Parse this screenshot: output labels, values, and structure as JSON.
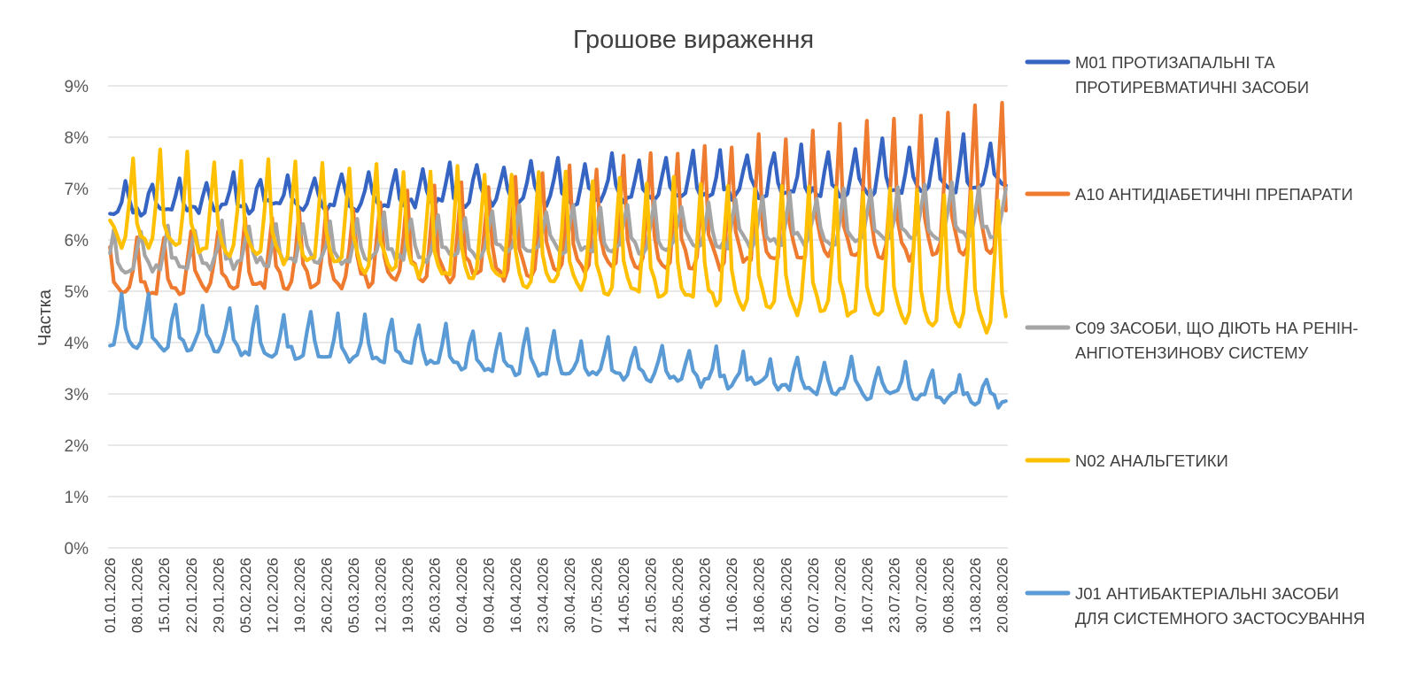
{
  "chart_data": {
    "type": "line",
    "title": "Грошове вираження",
    "ylabel": "Частка",
    "xlabel": "",
    "ylim": [
      0,
      9
    ],
    "yticks": [
      "0%",
      "1%",
      "2%",
      "3%",
      "4%",
      "5%",
      "6%",
      "7%",
      "8%",
      "9%"
    ],
    "grid": true,
    "legend_position": "right",
    "x_start": "01.01.2026",
    "x_end": "21.08.2026",
    "x_tick_labels": [
      "01.01.2026",
      "08.01.2026",
      "15.01.2026",
      "22.01.2026",
      "29.01.2026",
      "05.02.2026",
      "12.02.2026",
      "19.02.2026",
      "26.02.2026",
      "05.03.2026",
      "12.03.2026",
      "19.03.2026",
      "26.03.2026",
      "02.04.2026",
      "09.04.2026",
      "16.04.2026",
      "23.04.2026",
      "30.04.2026",
      "07.05.2026",
      "14.05.2026",
      "21.05.2026",
      "28.05.2026",
      "04.06.2026",
      "11.06.2026",
      "18.06.2026",
      "25.06.2026",
      "02.07.2026",
      "09.07.2026",
      "16.07.2026",
      "23.07.2026",
      "30.07.2026",
      "06.08.2026",
      "13.08.2026",
      "20.08.2026"
    ],
    "series": [
      {
        "name": "M01 ПРОТИЗАПАЛЬНІ ТА ПРОТИРЕВМАТИЧНІ ЗАСОБИ",
        "legend_lines": [
          "M01 ПРОТИЗАПАЛЬНІ ТА",
          "ПРОТИРЕВМАТИЧНІ ЗАСОБИ"
        ],
        "color": "#3564c2",
        "base_start": 6.75,
        "base_end": 7.35,
        "amp_start": 0.55,
        "amp_end": 1.05,
        "peak_weekday": 4,
        "seed": 11,
        "values": []
      },
      {
        "name": "A10 АНТИДІАБЕТИЧНІ ПРЕПАРАТИ",
        "legend_lines": [
          "A10 АНТИДІАБЕТИЧНІ ПРЕПАРАТИ"
        ],
        "color": "#ee7b30",
        "base_start": 5.3,
        "base_end": 6.9,
        "amp_start": 1.0,
        "amp_end": 3.0,
        "peak_weekday": 0,
        "seed": 23,
        "values": []
      },
      {
        "name": "C09 ЗАСОБИ, ЩО ДІЮТЬ НА РЕНІН-АНГІОТЕНЗИНОВУ СИСТЕМУ",
        "legend_lines": [
          "C09 ЗАСОБИ, ЩО ДІЮТЬ НА РЕНІН-",
          "АНГІОТЕНЗИНОВУ СИСТЕМУ"
        ],
        "color": "#a5a5a5",
        "base_start": 5.7,
        "base_end": 6.45,
        "amp_start": 0.75,
        "amp_end": 1.0,
        "peak_weekday": 1,
        "seed": 37,
        "values": []
      },
      {
        "name": "N02 АНАЛЬГЕТИКИ",
        "legend_lines": [
          "N02 АНАЛЬГЕТИКИ"
        ],
        "color": "#ffc000",
        "base_start": 6.6,
        "base_end": 5.2,
        "amp_start": 1.8,
        "amp_end": 2.6,
        "peak_weekday": 6,
        "seed": 41,
        "values": []
      },
      {
        "name": "J01 АНТИБАКТЕРІАЛЬНІ ЗАСОБИ ДЛЯ СИСТЕМНОГО ЗАСТОСУВАННЯ",
        "legend_lines": [
          "J01 АНТИБАКТЕРІАЛЬНІ ЗАСОБИ",
          "ДЛЯ СИСТЕМНОГО ЗАСТОСУВАННЯ"
        ],
        "color": "#5b9bd5",
        "base_start": 4.35,
        "base_end": 3.0,
        "amp_start": 0.95,
        "amp_end": 0.55,
        "peak_weekday": 3,
        "seed": 53,
        "values": []
      }
    ]
  }
}
